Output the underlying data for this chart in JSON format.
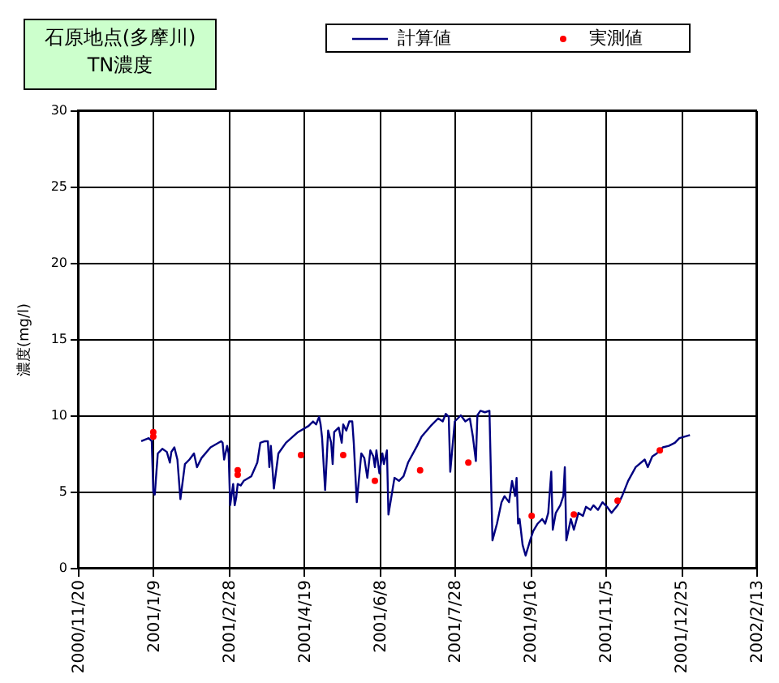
{
  "chart_data": {
    "type": "line",
    "title": "石原地点(多摩川)\nTN濃度",
    "ylabel": "濃度(mg/l)",
    "xlim": [
      "2000-11-20",
      "2002-02-13"
    ],
    "xticks": [
      {
        "value": "2000-11-20",
        "label": "2000/11/20"
      },
      {
        "value": "2001-01-09",
        "label": "2001/1/9"
      },
      {
        "value": "2001-02-28",
        "label": "2001/2/28"
      },
      {
        "value": "2001-04-19",
        "label": "2001/4/19"
      },
      {
        "value": "2001-06-08",
        "label": "2001/6/8"
      },
      {
        "value": "2001-07-28",
        "label": "2001/7/28"
      },
      {
        "value": "2001-09-16",
        "label": "2001/9/16"
      },
      {
        "value": "2001-11-05",
        "label": "2001/11/5"
      },
      {
        "value": "2001-12-25",
        "label": "2001/12/25"
      },
      {
        "value": "2002-02-13",
        "label": "2002/2/13"
      }
    ],
    "ylim": [
      0,
      30
    ],
    "yticks": [
      0,
      5,
      10,
      15,
      20,
      25,
      30
    ],
    "grid": true,
    "legend": "top",
    "series": [
      {
        "name": "計算値",
        "color": "#000080",
        "marker": "none",
        "x": [
          "2001-01-01",
          "2001-01-06",
          "2001-01-08",
          "2001-01-09",
          "2001-01-10",
          "2001-01-12",
          "2001-01-15",
          "2001-01-18",
          "2001-01-20",
          "2001-01-21",
          "2001-01-23",
          "2001-01-25",
          "2001-01-27",
          "2001-01-30",
          "2001-02-02",
          "2001-02-05",
          "2001-02-07",
          "2001-02-10",
          "2001-02-16",
          "2001-02-23",
          "2001-02-24",
          "2001-02-25",
          "2001-02-27",
          "2001-02-28",
          "2001-03-01",
          "2001-03-03",
          "2001-03-04",
          "2001-03-05",
          "2001-03-06",
          "2001-03-08",
          "2001-03-10",
          "2001-03-15",
          "2001-03-19",
          "2001-03-21",
          "2001-03-24",
          "2001-03-26",
          "2001-03-27",
          "2001-03-28",
          "2001-03-30",
          "2001-04-02",
          "2001-04-07",
          "2001-04-15",
          "2001-04-22",
          "2001-04-25",
          "2001-04-27",
          "2001-04-29",
          "2001-04-30",
          "2001-05-01",
          "2001-05-03",
          "2001-05-05",
          "2001-05-07",
          "2001-05-08",
          "2001-05-09",
          "2001-05-12",
          "2001-05-14",
          "2001-05-15",
          "2001-05-17",
          "2001-05-19",
          "2001-05-21",
          "2001-05-22",
          "2001-05-24",
          "2001-05-27",
          "2001-05-29",
          "2001-05-31",
          "2001-06-02",
          "2001-06-04",
          "2001-06-05",
          "2001-06-06",
          "2001-06-08",
          "2001-06-10",
          "2001-06-11",
          "2001-06-13",
          "2001-06-14",
          "2001-06-18",
          "2001-06-21",
          "2001-06-24",
          "2001-06-27",
          "2001-07-03",
          "2001-07-06",
          "2001-07-12",
          "2001-07-17",
          "2001-07-20",
          "2001-07-22",
          "2001-07-24",
          "2001-07-25",
          "2001-07-28",
          "2001-08-01",
          "2001-08-04",
          "2001-08-07",
          "2001-08-09",
          "2001-08-11",
          "2001-08-12",
          "2001-08-14",
          "2001-08-17",
          "2001-08-20",
          "2001-08-22",
          "2001-08-25",
          "2001-08-28",
          "2001-08-30",
          "2001-09-02",
          "2001-09-04",
          "2001-09-06",
          "2001-09-07",
          "2001-09-08",
          "2001-09-09",
          "2001-09-11",
          "2001-09-13",
          "2001-09-16",
          "2001-09-18",
          "2001-09-21",
          "2001-09-24",
          "2001-09-26",
          "2001-09-28",
          "2001-09-30",
          "2001-10-01",
          "2001-10-03",
          "2001-10-06",
          "2001-10-08",
          "2001-10-09",
          "2001-10-10",
          "2001-10-13",
          "2001-10-15",
          "2001-10-18",
          "2001-10-21",
          "2001-10-23",
          "2001-10-26",
          "2001-10-28",
          "2001-10-31",
          "2001-11-03",
          "2001-11-06",
          "2001-11-09",
          "2001-11-13",
          "2001-11-16",
          "2001-11-20",
          "2001-11-25",
          "2001-12-01",
          "2001-12-03",
          "2001-12-06",
          "2001-12-09",
          "2001-12-13",
          "2001-12-17",
          "2001-12-21",
          "2001-12-24",
          "2001-12-31"
        ],
        "values": [
          8.3,
          8.5,
          8.3,
          5.0,
          4.8,
          7.5,
          7.8,
          7.6,
          6.9,
          7.6,
          7.9,
          7.1,
          4.5,
          6.8,
          7.1,
          7.5,
          6.6,
          7.2,
          7.9,
          8.3,
          8.2,
          7.1,
          8.0,
          7.5,
          4.1,
          5.5,
          4.1,
          4.6,
          5.5,
          5.4,
          5.7,
          6.0,
          6.9,
          8.2,
          8.3,
          8.3,
          6.6,
          8.0,
          5.2,
          7.5,
          8.2,
          8.9,
          9.3,
          9.6,
          9.4,
          9.9,
          9.4,
          8.5,
          5.1,
          9.0,
          8.2,
          6.8,
          8.9,
          9.2,
          8.2,
          9.4,
          9.0,
          9.6,
          9.6,
          8.2,
          4.3,
          7.5,
          7.2,
          5.9,
          7.7,
          7.3,
          6.6,
          7.7,
          6.2,
          7.5,
          6.8,
          7.7,
          3.5,
          5.9,
          5.7,
          6.0,
          6.9,
          8.0,
          8.6,
          9.3,
          9.8,
          9.6,
          10.1,
          9.9,
          6.3,
          9.6,
          10.0,
          9.6,
          9.8,
          8.6,
          7.0,
          10.0,
          10.3,
          10.2,
          10.3,
          1.8,
          2.9,
          4.3,
          4.7,
          4.3,
          5.7,
          4.7,
          5.9,
          2.9,
          3.2,
          1.5,
          0.8,
          1.8,
          2.4,
          2.9,
          3.2,
          2.9,
          3.6,
          6.3,
          2.5,
          3.6,
          4.1,
          4.7,
          6.6,
          1.8,
          3.2,
          2.5,
          3.6,
          3.4,
          4.0,
          3.8,
          4.1,
          3.8,
          4.3,
          4.0,
          3.6,
          4.1,
          4.7,
          5.7,
          6.6,
          7.1,
          6.6,
          7.3,
          7.5,
          7.9,
          8.0,
          8.2,
          8.5,
          8.7
        ]
      },
      {
        "name": "実測値",
        "type": "scatter",
        "color": "#ff0000",
        "marker": "circle",
        "x": [
          "2001-01-09",
          "2001-01-09",
          "2001-03-06",
          "2001-03-06",
          "2001-04-17",
          "2001-05-15",
          "2001-06-05",
          "2001-07-05",
          "2001-08-06",
          "2001-09-17",
          "2001-10-15",
          "2001-11-13",
          "2001-12-11"
        ],
        "values": [
          8.9,
          8.6,
          6.4,
          6.1,
          7.4,
          7.4,
          5.7,
          6.4,
          6.9,
          3.4,
          3.5,
          4.4,
          7.7
        ]
      }
    ]
  }
}
